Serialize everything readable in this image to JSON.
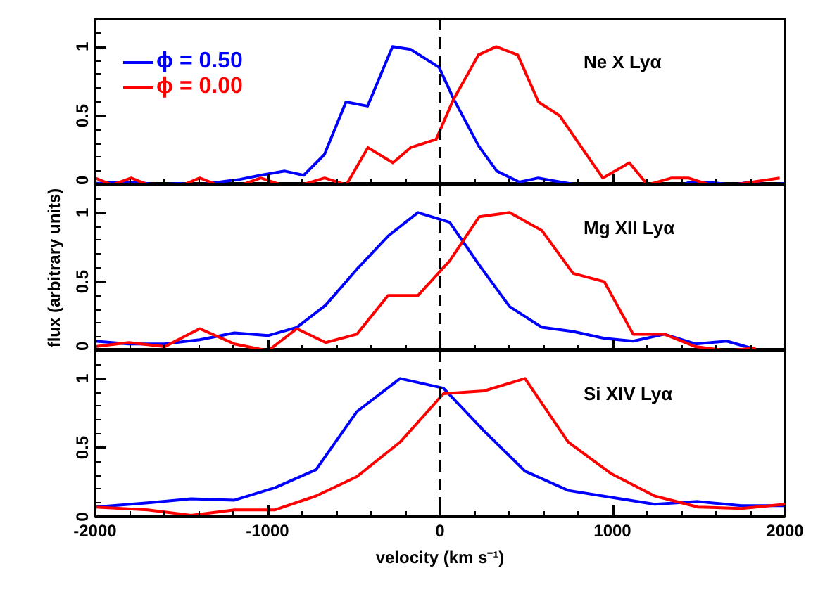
{
  "chart_data": [
    {
      "type": "line",
      "xlim": [
        -2000,
        2000
      ],
      "ylim": [
        0,
        1.2
      ],
      "xticks": [
        -2000,
        -1000,
        0,
        1000,
        2000
      ],
      "yticks": [
        0,
        0.5,
        1
      ],
      "tick_labels": "y",
      "grid": false,
      "legend": "top left",
      "annotations": [
        "Ne X Lyα"
      ],
      "ref_lines": [
        {
          "axis": "x",
          "value": 0,
          "line_style": "dashed",
          "color": "#000000"
        }
      ],
      "series": [
        {
          "name": "ϕ = 0.50",
          "color": "#0000ff",
          "x": [
            -2000,
            -1880,
            -1760,
            -1640,
            -1520,
            -1400,
            -1280,
            -1160,
            -1040,
            -900,
            -790,
            -670,
            -545,
            -420,
            -275,
            -170,
            -5,
            80,
            225,
            330,
            460,
            570,
            700,
            800,
            1400,
            1450,
            1550,
            1700,
            1800,
            1900,
            2000
          ],
          "values": [
            0.01,
            0.02,
            0.02,
            0.0,
            0.01,
            0.0,
            0.02,
            0.04,
            0.07,
            0.1,
            0.07,
            0.22,
            0.6,
            0.57,
            1.0,
            0.98,
            0.85,
            0.62,
            0.28,
            0.1,
            0.02,
            0.05,
            0.02,
            0.0,
            0.0,
            0.02,
            0.02,
            0.0,
            0.02,
            0.0,
            0.01
          ]
        },
        {
          "name": "ϕ = 0.00",
          "color": "#ff0000",
          "x": [
            -2000,
            -1900,
            -1791,
            -1690,
            -1490,
            -1393,
            -1290,
            -1150,
            -1039,
            -920,
            -800,
            -669,
            -543,
            -418,
            -273,
            -170,
            -22,
            75,
            223,
            326,
            451,
            571,
            694,
            833,
            944,
            1098,
            1204,
            1343,
            1440,
            1566,
            1700,
            1970
          ],
          "values": [
            0.05,
            0.0,
            0.05,
            0.0,
            0.0,
            0.05,
            0.0,
            0.0,
            0.05,
            0.0,
            0.0,
            0.05,
            0.0,
            0.27,
            0.16,
            0.27,
            0.33,
            0.61,
            0.94,
            1.0,
            0.94,
            0.6,
            0.5,
            0.25,
            0.05,
            0.16,
            0.0,
            0.05,
            0.05,
            0.0,
            0.0,
            0.05
          ]
        }
      ]
    },
    {
      "type": "line",
      "xlim": [
        -2000,
        2000
      ],
      "ylim": [
        0,
        1.2
      ],
      "xticks": [
        -2000,
        -1000,
        0,
        1000,
        2000
      ],
      "yticks": [
        0,
        0.5,
        1
      ],
      "tick_labels": "y",
      "grid": false,
      "legend": false,
      "ylabel": "flux (arbitrary units)",
      "annotations": [
        "Mg XII Lyα"
      ],
      "ref_lines": [
        {
          "axis": "x",
          "value": 0,
          "line_style": "dashed",
          "color": "#000000"
        }
      ],
      "series": [
        {
          "color": "#0000ff",
          "x": [
            -2000,
            -1805,
            -1596,
            -1393,
            -1192,
            -997,
            -830,
            -663,
            -482,
            -301,
            -128,
            56,
            228,
            404,
            591,
            772,
            953,
            1120,
            1301,
            1482,
            1663,
            1830
          ],
          "values": [
            0.07,
            0.05,
            0.05,
            0.08,
            0.13,
            0.11,
            0.17,
            0.33,
            0.59,
            0.83,
            1.0,
            0.93,
            0.62,
            0.32,
            0.17,
            0.14,
            0.09,
            0.07,
            0.12,
            0.05,
            0.07,
            0.01
          ]
        },
        {
          "color": "#ff0000",
          "x": [
            -2000,
            -1805,
            -1596,
            -1393,
            -1192,
            -997,
            -830,
            -663,
            -482,
            -301,
            -128,
            56,
            228,
            404,
            591,
            772,
            953,
            1120,
            1301,
            1482,
            1663,
            1830
          ],
          "values": [
            0.03,
            0.06,
            0.03,
            0.16,
            0.05,
            0.0,
            0.16,
            0.06,
            0.12,
            0.4,
            0.4,
            0.65,
            0.97,
            1.0,
            0.87,
            0.56,
            0.5,
            0.12,
            0.12,
            0.03,
            0.0,
            0.02
          ]
        }
      ]
    },
    {
      "type": "line",
      "xlim": [
        -2000,
        2000
      ],
      "ylim": [
        0,
        1.2
      ],
      "xticks": [
        -2000,
        -1000,
        0,
        1000,
        2000
      ],
      "yticks": [
        0,
        0.5,
        1
      ],
      "grid": false,
      "legend": false,
      "xlabel": "velocity (km s⁻¹)",
      "annotations": [
        "Si XIV Lyα"
      ],
      "ref_lines": [
        {
          "axis": "x",
          "value": 0,
          "line_style": "dashed",
          "color": "#000000"
        }
      ],
      "series": [
        {
          "color": "#0000ff",
          "x": [
            -2000,
            -1694,
            -1443,
            -1192,
            -956,
            -719,
            -482,
            -231,
            20,
            256,
            493,
            744,
            995,
            1245,
            1496,
            1747,
            2000
          ],
          "values": [
            0.07,
            0.1,
            0.13,
            0.12,
            0.21,
            0.34,
            0.76,
            1.0,
            0.93,
            0.62,
            0.33,
            0.19,
            0.14,
            0.09,
            0.11,
            0.08,
            0.08
          ]
        },
        {
          "color": "#ff0000",
          "x": [
            -2000,
            -1694,
            -1443,
            -1192,
            -956,
            -719,
            -482,
            -231,
            20,
            256,
            493,
            744,
            995,
            1245,
            1496,
            1747,
            2000
          ],
          "values": [
            0.07,
            0.05,
            0.01,
            0.05,
            0.05,
            0.15,
            0.29,
            0.54,
            0.89,
            0.91,
            1.0,
            0.54,
            0.31,
            0.15,
            0.07,
            0.06,
            0.09
          ]
        }
      ]
    }
  ]
}
